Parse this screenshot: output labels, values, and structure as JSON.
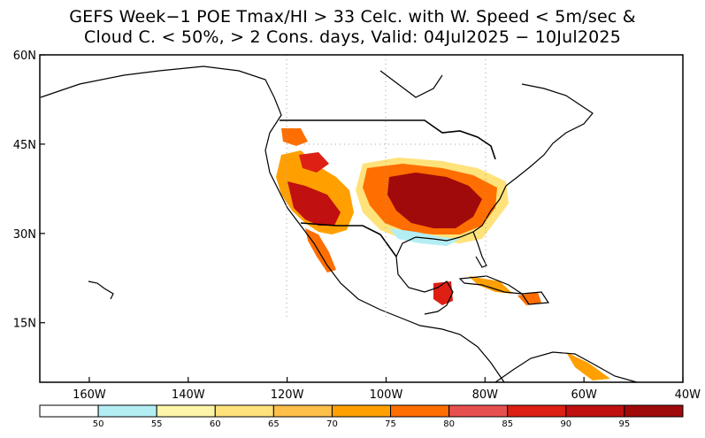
{
  "title": {
    "line1": "GEFS Week−1 POE Tmax/HI > 33 Celc. with W. Speed < 5m/sec &",
    "line2": "Cloud C. < 50%, > 2 Cons. days, Valid: 04Jul2025 − 10Jul2025"
  },
  "map": {
    "lon_range": [
      -170,
      -40
    ],
    "lat_range": [
      5,
      60
    ],
    "lat_ticks": [
      {
        "value": 60,
        "label": "60N"
      },
      {
        "value": 45,
        "label": "45N"
      },
      {
        "value": 30,
        "label": "30N"
      },
      {
        "value": 15,
        "label": "15N"
      }
    ],
    "lon_ticks": [
      {
        "value": -160,
        "label": "160W"
      },
      {
        "value": -140,
        "label": "140W"
      },
      {
        "value": -120,
        "label": "120W"
      },
      {
        "value": -100,
        "label": "100W"
      },
      {
        "value": -80,
        "label": "80W"
      },
      {
        "value": -60,
        "label": "60W"
      },
      {
        "value": -40,
        "label": "40W"
      }
    ],
    "gridlines": "dotted, inset region"
  },
  "colorbar": {
    "colors": [
      "#ffffff",
      "#b4eef5",
      "#fff5a8",
      "#ffe27a",
      "#ffc04a",
      "#ffa000",
      "#ff6e00",
      "#e85050",
      "#dd1f14",
      "#c01010",
      "#a00a0a"
    ],
    "labels": [
      "50",
      "55",
      "60",
      "65",
      "70",
      "75",
      "80",
      "85",
      "90",
      "95"
    ]
  },
  "colors": {
    "border": "#000000",
    "grid": "#a0a0a0"
  }
}
